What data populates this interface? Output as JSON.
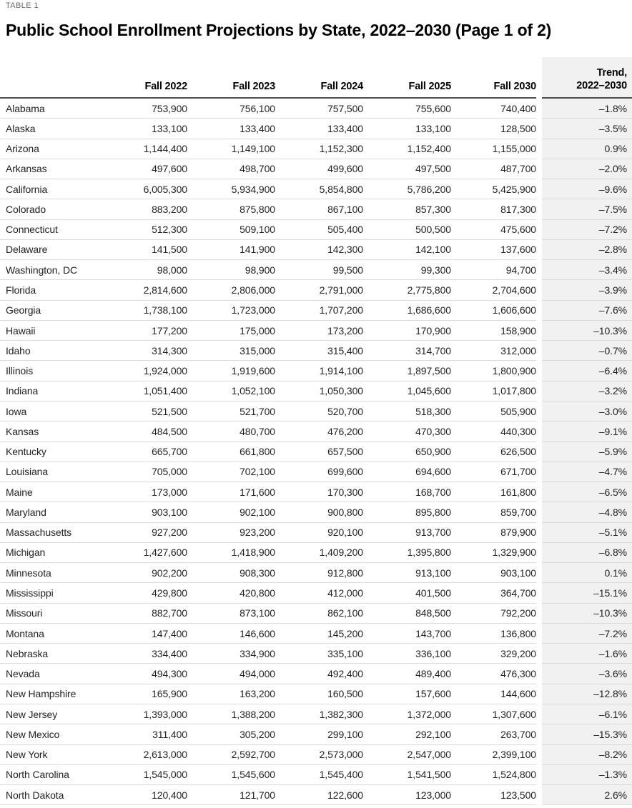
{
  "page": {
    "eyebrow": "TABLE 1",
    "title": "Public School Enrollment Projections by State, 2022–2030 (Page 1 of 2)"
  },
  "table": {
    "year_columns": [
      "Fall 2022",
      "Fall 2023",
      "Fall 2024",
      "Fall 2025",
      "Fall 2030"
    ],
    "trend_column": {
      "line1": "Trend,",
      "line2": "2022–2030"
    },
    "rows": [
      {
        "state": "Alabama",
        "values": [
          "753,900",
          "756,100",
          "757,500",
          "755,600",
          "740,400"
        ],
        "trend": "–1.8%"
      },
      {
        "state": "Alaska",
        "values": [
          "133,100",
          "133,400",
          "133,400",
          "133,100",
          "128,500"
        ],
        "trend": "–3.5%"
      },
      {
        "state": "Arizona",
        "values": [
          "1,144,400",
          "1,149,100",
          "1,152,300",
          "1,152,400",
          "1,155,000"
        ],
        "trend": "0.9%"
      },
      {
        "state": "Arkansas",
        "values": [
          "497,600",
          "498,700",
          "499,600",
          "497,500",
          "487,700"
        ],
        "trend": "–2.0%"
      },
      {
        "state": "California",
        "values": [
          "6,005,300",
          "5,934,900",
          "5,854,800",
          "5,786,200",
          "5,425,900"
        ],
        "trend": "–9.6%"
      },
      {
        "state": "Colorado",
        "values": [
          "883,200",
          "875,800",
          "867,100",
          "857,300",
          "817,300"
        ],
        "trend": "–7.5%"
      },
      {
        "state": "Connecticut",
        "values": [
          "512,300",
          "509,100",
          "505,400",
          "500,500",
          "475,600"
        ],
        "trend": "–7.2%"
      },
      {
        "state": "Delaware",
        "values": [
          "141,500",
          "141,900",
          "142,300",
          "142,100",
          "137,600"
        ],
        "trend": "–2.8%"
      },
      {
        "state": "Washington, DC",
        "values": [
          "98,000",
          "98,900",
          "99,500",
          "99,300",
          "94,700"
        ],
        "trend": "–3.4%"
      },
      {
        "state": "Florida",
        "values": [
          "2,814,600",
          "2,806,000",
          "2,791,000",
          "2,775,800",
          "2,704,600"
        ],
        "trend": "–3.9%"
      },
      {
        "state": "Georgia",
        "values": [
          "1,738,100",
          "1,723,000",
          "1,707,200",
          "1,686,600",
          "1,606,600"
        ],
        "trend": "–7.6%"
      },
      {
        "state": "Hawaii",
        "values": [
          "177,200",
          "175,000",
          "173,200",
          "170,900",
          "158,900"
        ],
        "trend": "–10.3%"
      },
      {
        "state": "Idaho",
        "values": [
          "314,300",
          "315,000",
          "315,400",
          "314,700",
          "312,000"
        ],
        "trend": "–0.7%"
      },
      {
        "state": "Illinois",
        "values": [
          "1,924,000",
          "1,919,600",
          "1,914,100",
          "1,897,500",
          "1,800,900"
        ],
        "trend": "–6.4%"
      },
      {
        "state": "Indiana",
        "values": [
          "1,051,400",
          "1,052,100",
          "1,050,300",
          "1,045,600",
          "1,017,800"
        ],
        "trend": "–3.2%"
      },
      {
        "state": "Iowa",
        "values": [
          "521,500",
          "521,700",
          "520,700",
          "518,300",
          "505,900"
        ],
        "trend": "–3.0%"
      },
      {
        "state": "Kansas",
        "values": [
          "484,500",
          "480,700",
          "476,200",
          "470,300",
          "440,300"
        ],
        "trend": "–9.1%"
      },
      {
        "state": "Kentucky",
        "values": [
          "665,700",
          "661,800",
          "657,500",
          "650,900",
          "626,500"
        ],
        "trend": "–5.9%"
      },
      {
        "state": "Louisiana",
        "values": [
          "705,000",
          "702,100",
          "699,600",
          "694,600",
          "671,700"
        ],
        "trend": "–4.7%"
      },
      {
        "state": "Maine",
        "values": [
          "173,000",
          "171,600",
          "170,300",
          "168,700",
          "161,800"
        ],
        "trend": "–6.5%"
      },
      {
        "state": "Maryland",
        "values": [
          "903,100",
          "902,100",
          "900,800",
          "895,800",
          "859,700"
        ],
        "trend": "–4.8%"
      },
      {
        "state": "Massachusetts",
        "values": [
          "927,200",
          "923,200",
          "920,100",
          "913,700",
          "879,900"
        ],
        "trend": "–5.1%"
      },
      {
        "state": "Michigan",
        "values": [
          "1,427,600",
          "1,418,900",
          "1,409,200",
          "1,395,800",
          "1,329,900"
        ],
        "trend": "–6.8%"
      },
      {
        "state": "Minnesota",
        "values": [
          "902,200",
          "908,300",
          "912,800",
          "913,100",
          "903,100"
        ],
        "trend": "0.1%"
      },
      {
        "state": "Mississippi",
        "values": [
          "429,800",
          "420,800",
          "412,000",
          "401,500",
          "364,700"
        ],
        "trend": "–15.1%"
      },
      {
        "state": "Missouri",
        "values": [
          "882,700",
          "873,100",
          "862,100",
          "848,500",
          "792,200"
        ],
        "trend": "–10.3%"
      },
      {
        "state": "Montana",
        "values": [
          "147,400",
          "146,600",
          "145,200",
          "143,700",
          "136,800"
        ],
        "trend": "–7.2%"
      },
      {
        "state": "Nebraska",
        "values": [
          "334,400",
          "334,900",
          "335,100",
          "336,100",
          "329,200"
        ],
        "trend": "–1.6%"
      },
      {
        "state": "Nevada",
        "values": [
          "494,300",
          "494,000",
          "492,400",
          "489,400",
          "476,300"
        ],
        "trend": "–3.6%"
      },
      {
        "state": "New Hampshire",
        "values": [
          "165,900",
          "163,200",
          "160,500",
          "157,600",
          "144,600"
        ],
        "trend": "–12.8%"
      },
      {
        "state": "New Jersey",
        "values": [
          "1,393,000",
          "1,388,200",
          "1,382,300",
          "1,372,000",
          "1,307,600"
        ],
        "trend": "–6.1%"
      },
      {
        "state": "New Mexico",
        "values": [
          "311,400",
          "305,200",
          "299,100",
          "292,100",
          "263,700"
        ],
        "trend": "–15.3%"
      },
      {
        "state": "New York",
        "values": [
          "2,613,000",
          "2,592,700",
          "2,573,000",
          "2,547,000",
          "2,399,100"
        ],
        "trend": "–8.2%"
      },
      {
        "state": "North Carolina",
        "values": [
          "1,545,000",
          "1,545,600",
          "1,545,400",
          "1,541,500",
          "1,524,800"
        ],
        "trend": "–1.3%"
      },
      {
        "state": "North Dakota",
        "values": [
          "120,400",
          "121,700",
          "122,600",
          "123,000",
          "123,500"
        ],
        "trend": "2.6%"
      }
    ]
  },
  "colors": {
    "trend_column_bg": "#f1f1f2",
    "row_separator": "#dadada",
    "header_rule": "#4c4d4f",
    "eyebrow_text": "#696a6d",
    "body_text": "#231f20"
  }
}
